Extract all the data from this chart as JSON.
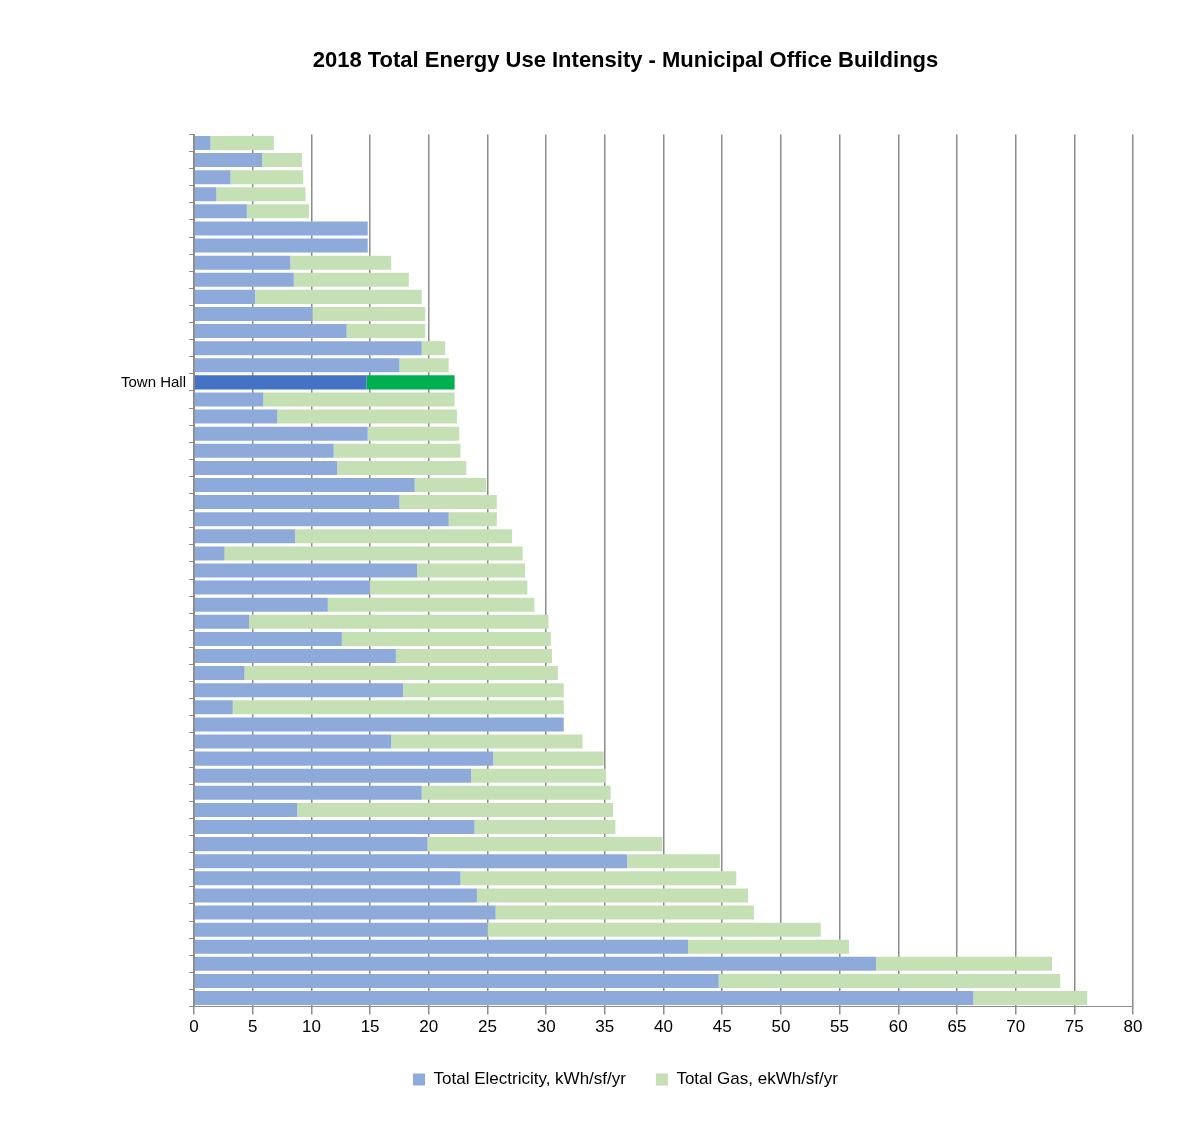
{
  "chart_data": {
    "type": "bar",
    "orientation": "horizontal",
    "stacked": true,
    "title": "2018 Total Energy Use Intensity - Municipal Office Buildings",
    "categories": [
      null,
      null,
      null,
      null,
      null,
      null,
      null,
      null,
      null,
      null,
      null,
      null,
      null,
      null,
      "Town Hall",
      null,
      null,
      null,
      null,
      null,
      null,
      null,
      null,
      null,
      null,
      null,
      null,
      null,
      null,
      null,
      null,
      null,
      null,
      null,
      null,
      null,
      null,
      null,
      null,
      null,
      null,
      null,
      null,
      null,
      null,
      null,
      null,
      null,
      null,
      null,
      null
    ],
    "series": [
      {
        "name": "Total Electricity, kWh/sf/yr",
        "color": "#8eaadb",
        "colors": [
          "#8eaadb",
          "#8eaadb",
          "#8eaadb",
          "#8eaadb",
          "#8eaadb",
          "#8eaadb",
          "#8eaadb",
          "#8eaadb",
          "#8eaadb",
          "#8eaadb",
          "#8eaadb",
          "#8eaadb",
          "#8eaadb",
          "#8eaadb",
          "#4472c4",
          "#8eaadb",
          "#8eaadb",
          "#8eaadb",
          "#8eaadb",
          "#8eaadb",
          "#8eaadb",
          "#8eaadb",
          "#8eaadb",
          "#8eaadb",
          "#8eaadb",
          "#8eaadb",
          "#8eaadb",
          "#8eaadb",
          "#8eaadb",
          "#8eaadb",
          "#8eaadb",
          "#8eaadb",
          "#8eaadb",
          "#8eaadb",
          "#8eaadb",
          "#8eaadb",
          "#8eaadb",
          "#8eaadb",
          "#8eaadb",
          "#8eaadb",
          "#8eaadb",
          "#8eaadb",
          "#8eaadb",
          "#8eaadb",
          "#8eaadb",
          "#8eaadb",
          "#8eaadb",
          "#8eaadb",
          "#8eaadb",
          "#8eaadb",
          "#8eaadb"
        ],
        "values": [
          1.4,
          5.8,
          3.1,
          1.9,
          4.5,
          14.8,
          14.8,
          8.2,
          8.5,
          5.2,
          10.1,
          13.0,
          19.4,
          17.5,
          14.7,
          5.9,
          7.1,
          14.8,
          11.9,
          12.2,
          18.8,
          17.5,
          21.7,
          8.6,
          2.6,
          19.0,
          15.0,
          11.4,
          4.7,
          12.6,
          17.2,
          4.3,
          17.8,
          3.3,
          31.5,
          16.8,
          25.5,
          23.6,
          19.4,
          8.8,
          23.9,
          19.9,
          36.9,
          22.7,
          24.1,
          25.7,
          25.0,
          42.1,
          58.1,
          44.7,
          66.4
        ]
      },
      {
        "name": "Total Gas, ekWh/sf/yr",
        "color": "#c5e0b4",
        "colors": [
          "#c5e0b4",
          "#c5e0b4",
          "#c5e0b4",
          "#c5e0b4",
          "#c5e0b4",
          "#c5e0b4",
          "#c5e0b4",
          "#c5e0b4",
          "#c5e0b4",
          "#c5e0b4",
          "#c5e0b4",
          "#c5e0b4",
          "#c5e0b4",
          "#c5e0b4",
          "#00b050",
          "#c5e0b4",
          "#c5e0b4",
          "#c5e0b4",
          "#c5e0b4",
          "#c5e0b4",
          "#c5e0b4",
          "#c5e0b4",
          "#c5e0b4",
          "#c5e0b4",
          "#c5e0b4",
          "#c5e0b4",
          "#c5e0b4",
          "#c5e0b4",
          "#c5e0b4",
          "#c5e0b4",
          "#c5e0b4",
          "#c5e0b4",
          "#c5e0b4",
          "#c5e0b4",
          "#c5e0b4",
          "#c5e0b4",
          "#c5e0b4",
          "#c5e0b4",
          "#c5e0b4",
          "#c5e0b4",
          "#c5e0b4",
          "#c5e0b4",
          "#c5e0b4",
          "#c5e0b4",
          "#c5e0b4",
          "#c5e0b4",
          "#c5e0b4",
          "#c5e0b4",
          "#c5e0b4",
          "#c5e0b4",
          "#c5e0b4"
        ],
        "values": [
          5.4,
          3.4,
          6.2,
          7.6,
          5.3,
          0,
          0,
          8.6,
          9.8,
          14.2,
          9.6,
          6.7,
          2.0,
          4.2,
          7.5,
          16.3,
          15.3,
          7.8,
          10.8,
          11.0,
          6.1,
          8.3,
          4.1,
          18.5,
          25.4,
          9.2,
          13.4,
          17.6,
          25.5,
          17.8,
          13.3,
          26.7,
          13.7,
          28.2,
          0,
          16.3,
          9.4,
          11.5,
          16.1,
          26.9,
          12.0,
          20.0,
          7.9,
          23.5,
          23.1,
          22.0,
          28.4,
          13.7,
          15.0,
          29.1,
          9.7
        ]
      }
    ],
    "xlim": [
      0,
      80
    ],
    "xticks": [
      0,
      5,
      10,
      15,
      20,
      25,
      30,
      35,
      40,
      45,
      50,
      55,
      60,
      65,
      70,
      75,
      80
    ],
    "grid": "x",
    "legend": "bottom"
  }
}
